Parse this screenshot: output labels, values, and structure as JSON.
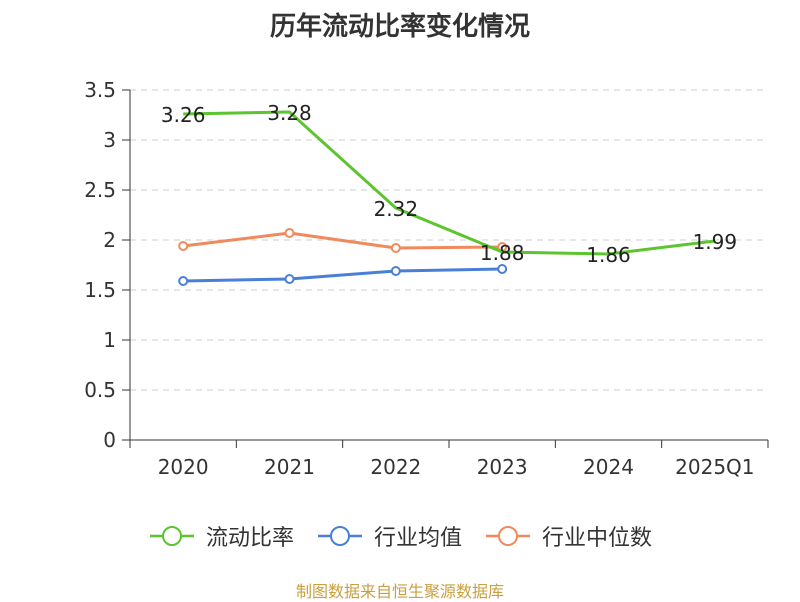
{
  "chart_data": {
    "type": "line",
    "title": "历年流动比率变化情况",
    "categories": [
      "2020",
      "2021",
      "2022",
      "2023",
      "2024",
      "2025Q1"
    ],
    "ylim": [
      0,
      3.5
    ],
    "yticks": [
      "0",
      "0.5",
      "1",
      "1.5",
      "2",
      "2.5",
      "3",
      "3.5"
    ],
    "grid": true,
    "legend_position": "bottom",
    "series": [
      {
        "name": "流动比率",
        "color": "#5cc42e",
        "values": [
          3.26,
          3.28,
          2.32,
          1.88,
          1.86,
          1.99
        ],
        "labels": [
          "3.26",
          "3.28",
          "2.32",
          "1.88",
          "1.86",
          "1.99"
        ],
        "show_markers": false
      },
      {
        "name": "行业均值",
        "color": "#4a7fd8",
        "values": [
          1.59,
          1.61,
          1.69,
          1.71,
          null,
          null
        ],
        "show_markers": true
      },
      {
        "name": "行业中位数",
        "color": "#f08a5d",
        "values": [
          1.94,
          2.07,
          1.92,
          1.93,
          null,
          null
        ],
        "show_markers": true
      }
    ]
  },
  "source_note": "制图数据来自恒生聚源数据库"
}
